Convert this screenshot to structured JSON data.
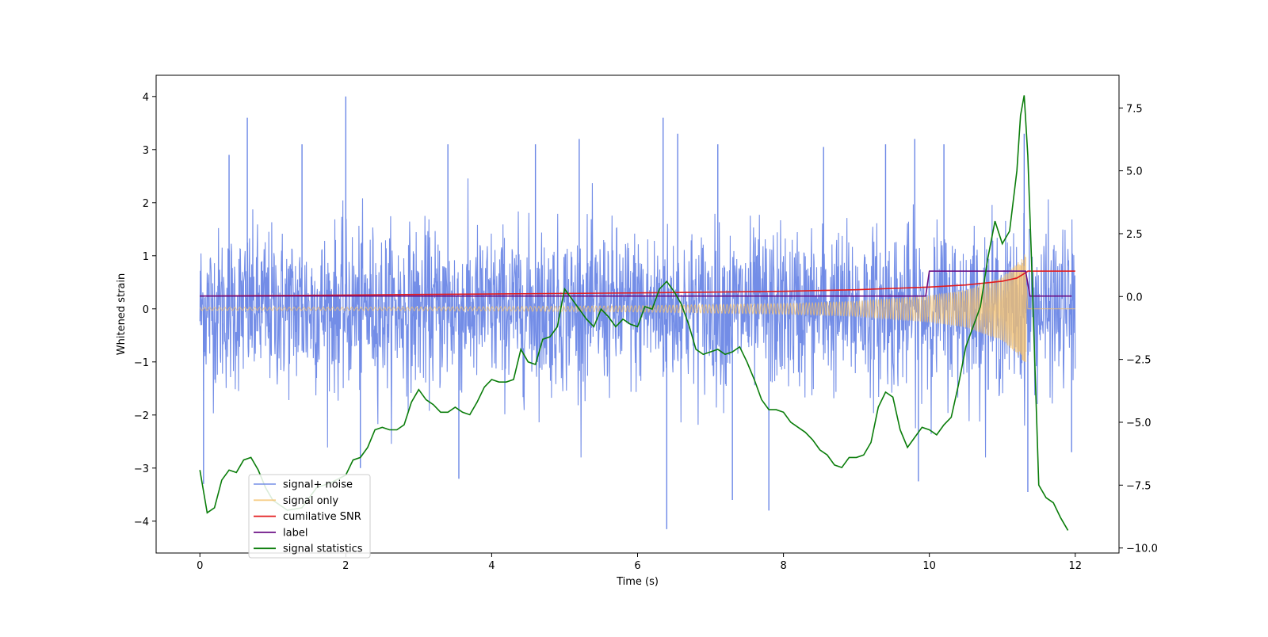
{
  "chart_data": {
    "type": "line",
    "xlabel": "Time (s)",
    "ylabel": "Whitened strain",
    "xlim": [
      -0.6,
      12.6
    ],
    "ylim": [
      -4.6,
      4.4
    ],
    "y2lim": [
      -10.2,
      8.8
    ],
    "x_ticks": [
      0,
      2,
      4,
      6,
      8,
      10,
      12
    ],
    "y_ticks": [
      -4,
      -3,
      -2,
      -1,
      0,
      1,
      2,
      3,
      4
    ],
    "y2_ticks": [
      -10.0,
      -7.5,
      -5.0,
      -2.5,
      0.0,
      2.5,
      5.0,
      7.5
    ],
    "x_tick_labels": [
      "0",
      "2",
      "4",
      "6",
      "8",
      "10",
      "12"
    ],
    "y_tick_labels": [
      "−4",
      "−3",
      "−2",
      "−1",
      "0",
      "1",
      "2",
      "3",
      "4"
    ],
    "y2_tick_labels": [
      "−10.0",
      "−7.5",
      "−5.0",
      "−2.5",
      "0.0",
      "2.5",
      "5.0",
      "7.5"
    ],
    "grid": false,
    "legend_position": "lower-left",
    "colors": {
      "signal_noise": "#6b87e6",
      "signal_only": "#f5c26b",
      "cumulative_snr": "#e31a1c",
      "label": "#6a0d83",
      "statistics": "#0a7d0a"
    },
    "series": [
      {
        "name": "signal+ noise",
        "axis": "left",
        "description_values": "dense noisy strain, roughly within [-2.5, 2.5] with spikes to about ±4, sampled 0–12 s",
        "envelope_upper": [
          [
            0,
            1.8
          ],
          [
            0.5,
            2.0
          ],
          [
            1,
            1.9
          ],
          [
            2,
            2.0
          ],
          [
            3,
            1.9
          ],
          [
            4,
            2.0
          ],
          [
            5,
            2.0
          ],
          [
            6,
            2.0
          ],
          [
            7,
            2.0
          ],
          [
            8,
            2.0
          ],
          [
            9,
            2.0
          ],
          [
            10,
            2.0
          ],
          [
            11,
            2.0
          ],
          [
            12,
            2.0
          ]
        ],
        "spikes": [
          [
            0.05,
            -3.3
          ],
          [
            0.4,
            2.9
          ],
          [
            0.65,
            3.6
          ],
          [
            1.4,
            3.1
          ],
          [
            2.0,
            4.0
          ],
          [
            2.2,
            -3.0
          ],
          [
            3.4,
            3.1
          ],
          [
            3.55,
            -3.2
          ],
          [
            4.6,
            3.1
          ],
          [
            5.2,
            3.2
          ],
          [
            6.35,
            3.6
          ],
          [
            6.4,
            -4.15
          ],
          [
            6.55,
            3.3
          ],
          [
            7.1,
            3.1
          ],
          [
            7.3,
            -3.6
          ],
          [
            7.8,
            -3.8
          ],
          [
            8.55,
            3.05
          ],
          [
            9.4,
            3.1
          ],
          [
            9.8,
            3.2
          ],
          [
            9.85,
            -3.25
          ],
          [
            10.2,
            3.1
          ],
          [
            11.3,
            3.3
          ],
          [
            11.35,
            -3.45
          ],
          [
            11.95,
            -2.7
          ]
        ]
      },
      {
        "name": "signal only",
        "axis": "left",
        "description_values": "chirp oscillation with amplitude growing from ~0.03 at t=0 to ~1.0 at t≈11.32 s, then ~0",
        "amplitude_envelope": [
          [
            0,
            0.03
          ],
          [
            2,
            0.03
          ],
          [
            4,
            0.04
          ],
          [
            6,
            0.06
          ],
          [
            8,
            0.1
          ],
          [
            9,
            0.14
          ],
          [
            10,
            0.25
          ],
          [
            10.5,
            0.35
          ],
          [
            11.0,
            0.6
          ],
          [
            11.2,
            0.85
          ],
          [
            11.32,
            1.05
          ],
          [
            11.35,
            0.0
          ],
          [
            12,
            0.0
          ]
        ]
      },
      {
        "name": "cumilative SNR",
        "axis": "left",
        "x": [
          0,
          2,
          4,
          6,
          8,
          9,
          10,
          10.5,
          11.0,
          11.2,
          11.32,
          11.35,
          12
        ],
        "y": [
          0.24,
          0.26,
          0.28,
          0.3,
          0.33,
          0.36,
          0.41,
          0.45,
          0.52,
          0.58,
          0.68,
          0.71,
          0.71
        ]
      },
      {
        "name": "label",
        "axis": "left",
        "x": [
          0,
          9.95,
          10.0,
          11.32,
          11.38,
          11.95
        ],
        "y": [
          0.24,
          0.24,
          0.71,
          0.71,
          0.24,
          0.24
        ]
      },
      {
        "name": "signal statistics",
        "axis": "right",
        "x": [
          0,
          0.1,
          0.2,
          0.3,
          0.4,
          0.5,
          0.6,
          0.7,
          0.8,
          0.9,
          1.0,
          1.2,
          1.4,
          1.6,
          1.8,
          2.0,
          2.1,
          2.2,
          2.3,
          2.4,
          2.5,
          2.6,
          2.7,
          2.8,
          2.9,
          3.0,
          3.1,
          3.2,
          3.3,
          3.4,
          3.5,
          3.6,
          3.7,
          3.8,
          3.9,
          4.0,
          4.1,
          4.2,
          4.3,
          4.4,
          4.5,
          4.6,
          4.7,
          4.8,
          4.9,
          5.0,
          5.1,
          5.2,
          5.3,
          5.4,
          5.5,
          5.6,
          5.7,
          5.8,
          5.9,
          6.0,
          6.1,
          6.2,
          6.3,
          6.4,
          6.5,
          6.6,
          6.7,
          6.8,
          6.9,
          7.0,
          7.1,
          7.2,
          7.3,
          7.4,
          7.5,
          7.6,
          7.7,
          7.8,
          7.9,
          8.0,
          8.1,
          8.2,
          8.3,
          8.4,
          8.5,
          8.6,
          8.7,
          8.8,
          8.9,
          9.0,
          9.1,
          9.2,
          9.3,
          9.4,
          9.5,
          9.6,
          9.7,
          9.8,
          9.9,
          10.0,
          10.1,
          10.2,
          10.3,
          10.4,
          10.5,
          10.6,
          10.7,
          10.8,
          10.9,
          11.0,
          11.1,
          11.2,
          11.25,
          11.3,
          11.35,
          11.4,
          11.45,
          11.5,
          11.6,
          11.7,
          11.8,
          11.9
        ],
        "y": [
          -6.9,
          -8.6,
          -8.4,
          -7.3,
          -6.9,
          -7.0,
          -6.5,
          -6.4,
          -6.9,
          -7.6,
          -8.1,
          -8.5,
          -8.4,
          -7.6,
          -7.4,
          -7.1,
          -6.5,
          -6.4,
          -6.0,
          -5.3,
          -5.2,
          -5.3,
          -5.3,
          -5.1,
          -4.2,
          -3.7,
          -4.1,
          -4.3,
          -4.6,
          -4.6,
          -4.4,
          -4.6,
          -4.7,
          -4.2,
          -3.6,
          -3.3,
          -3.4,
          -3.4,
          -3.3,
          -2.1,
          -2.6,
          -2.7,
          -1.7,
          -1.6,
          -1.2,
          0.3,
          -0.1,
          -0.5,
          -0.9,
          -1.2,
          -0.5,
          -0.8,
          -1.2,
          -0.9,
          -1.1,
          -1.2,
          -0.4,
          -0.5,
          0.3,
          0.6,
          0.2,
          -0.3,
          -1.1,
          -2.1,
          -2.3,
          -2.2,
          -2.1,
          -2.3,
          -2.2,
          -2.0,
          -2.6,
          -3.3,
          -4.1,
          -4.5,
          -4.5,
          -4.6,
          -5.0,
          -5.2,
          -5.4,
          -5.7,
          -6.1,
          -6.3,
          -6.7,
          -6.8,
          -6.4,
          -6.4,
          -6.3,
          -5.8,
          -4.4,
          -3.8,
          -4.0,
          -5.3,
          -6.0,
          -5.6,
          -5.2,
          -5.3,
          -5.5,
          -5.1,
          -4.8,
          -3.5,
          -2.0,
          -1.2,
          -0.4,
          1.5,
          3.0,
          2.1,
          2.6,
          5.0,
          7.2,
          8.0,
          5.6,
          1.5,
          -3.0,
          -7.5,
          -8.0,
          -8.2,
          -8.8,
          -9.3
        ]
      }
    ]
  }
}
